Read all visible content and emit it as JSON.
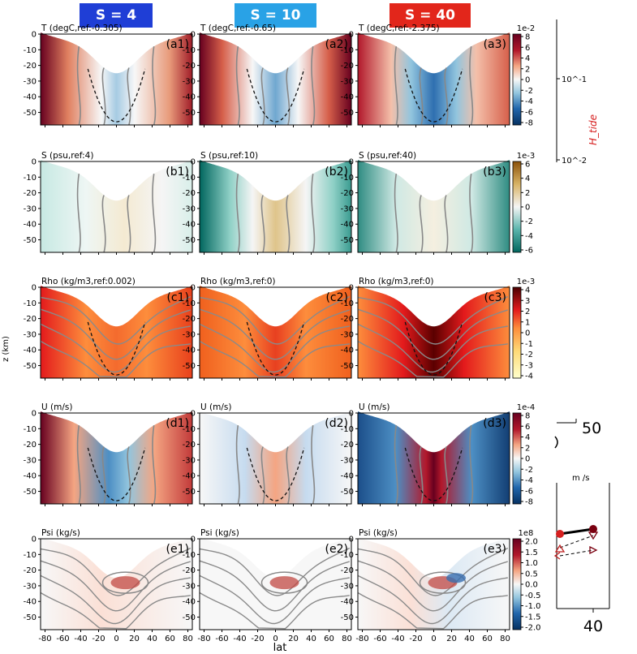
{
  "headers": [
    {
      "label": "S = 4 psu",
      "color": "#1f3ed6"
    },
    {
      "label": "S = 10 psu",
      "color": "#29a2e6"
    },
    {
      "label": "S = 40 psu",
      "color": "#e2261b"
    }
  ],
  "chart_data": {
    "type": "heatmap",
    "x_label": "lat",
    "y_label": "z (km)",
    "x_ticks": [
      -80,
      -60,
      -40,
      -20,
      0,
      20,
      40,
      60,
      80
    ],
    "y_ticks": [
      0,
      -10,
      -20,
      -30,
      -40,
      -50
    ],
    "xlim": [
      -85,
      85
    ],
    "ylim": [
      -58,
      0
    ],
    "rows": [
      {
        "key": "T",
        "colormap": "diverging-blue-red",
        "titles": [
          "T (degC,ref:-0.305)",
          "T (degC,ref:-0.65)",
          "T (degC,ref:-2.375)"
        ],
        "panel_labels": [
          "(a1)",
          "(a2)",
          "(a3)"
        ],
        "colorbar_exponent": "1e-2",
        "colorbar_ticks": [
          8,
          6,
          4,
          2,
          0,
          -2,
          -4,
          -6,
          -8
        ]
      },
      {
        "key": "S",
        "colormap": "diverging-teal-brown",
        "titles": [
          "S (psu,ref:4)",
          "S (psu,ref:10)",
          "S (psu,ref:40)"
        ],
        "panel_labels": [
          "(b1)",
          "(b2)",
          "(b3)"
        ],
        "colorbar_exponent": "1e-3",
        "colorbar_ticks": [
          6,
          4,
          2,
          0,
          -2,
          -4,
          -6
        ]
      },
      {
        "key": "Rho",
        "colormap": "sequential-hot",
        "titles": [
          "Rho (kg/m3,ref:0.002)",
          "Rho (kg/m3,ref:0)",
          "Rho (kg/m3,ref:0)"
        ],
        "panel_labels": [
          "(c1)",
          "(c2)",
          "(c3)"
        ],
        "colorbar_exponent": "1e-3",
        "colorbar_ticks": [
          4,
          3,
          2,
          1,
          0,
          -1,
          -2,
          -3,
          -4
        ]
      },
      {
        "key": "U",
        "colormap": "diverging-blue-red",
        "titles": [
          "U (m/s)",
          "U (m/s)",
          "U (m/s)"
        ],
        "panel_labels": [
          "(d1)",
          "(d2)",
          "(d3)"
        ],
        "colorbar_exponent": "1e-4",
        "colorbar_ticks": [
          8,
          6,
          4,
          2,
          0,
          -2,
          -4,
          -6,
          -8
        ]
      },
      {
        "key": "Psi",
        "colormap": "diverging-blue-red",
        "titles": [
          "Psi (kg/s)",
          "Psi (kg/s)",
          "Psi (kg/s)"
        ],
        "panel_labels": [
          "(e1)",
          "(e2)",
          "(e3)"
        ],
        "colorbar_exponent": "1e8",
        "colorbar_ticks": [
          "2.0",
          "1.5",
          "1.0",
          "0.5",
          "0.0",
          "-0.5",
          "-1.0",
          "-1.5",
          "-2.0"
        ]
      }
    ]
  },
  "side_panel": {
    "log_axis_ticks": [
      "10^-1",
      "10^-2"
    ],
    "log_axis_label": "H_tide",
    "tick_labels": [
      "50",
      "40"
    ],
    "partial_text": "m /s"
  }
}
